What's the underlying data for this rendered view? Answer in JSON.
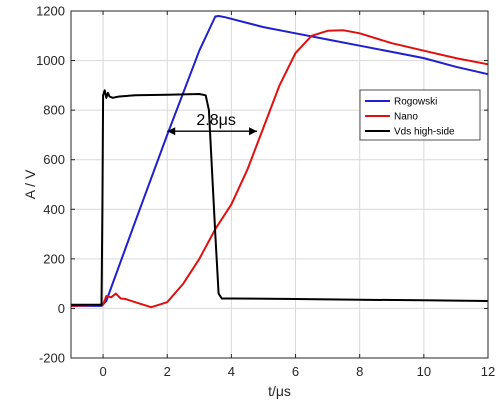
{
  "chart_data": {
    "type": "line",
    "xlabel": "t/μs",
    "ylabel": "A / V",
    "xlim": [
      -1,
      12
    ],
    "ylim": [
      -200,
      1200
    ],
    "xticks": [
      0,
      2,
      4,
      6,
      8,
      10,
      12
    ],
    "yticks": [
      -200,
      0,
      200,
      400,
      600,
      800,
      1000,
      1200
    ],
    "grid": true,
    "legend_position": "right",
    "series": [
      {
        "name": "Rogowski",
        "color": "#1f1fd0",
        "x": [
          -1,
          -0.05,
          0.1,
          1.0,
          2.0,
          3.0,
          3.5,
          3.6,
          3.8,
          5,
          6,
          7,
          8,
          9,
          10,
          11,
          12
        ],
        "y": [
          10,
          10,
          30,
          350,
          700,
          1040,
          1178,
          1180,
          1175,
          1135,
          1110,
          1085,
          1060,
          1035,
          1010,
          975,
          945
        ]
      },
      {
        "name": "Nano",
        "color": "#e01010",
        "x": [
          -1,
          0,
          0.1,
          0.25,
          0.4,
          0.55,
          0.7,
          1.0,
          1.5,
          2.0,
          2.5,
          3.0,
          3.5,
          4.0,
          4.5,
          5.0,
          5.5,
          6.0,
          6.5,
          7.0,
          7.5,
          8.0,
          9.0,
          10.0,
          11.0,
          12.0
        ],
        "y": [
          10,
          15,
          50,
          45,
          60,
          40,
          38,
          25,
          5,
          25,
          100,
          200,
          320,
          420,
          560,
          730,
          900,
          1030,
          1100,
          1120,
          1122,
          1110,
          1070,
          1040,
          1010,
          985
        ]
      },
      {
        "name": "Vds high-side",
        "color": "#000000",
        "x": [
          -1,
          -0.05,
          -0.02,
          0.0,
          0.05,
          0.1,
          0.15,
          0.2,
          0.3,
          0.5,
          1.0,
          2.0,
          3.0,
          3.2,
          3.3,
          3.5,
          3.6,
          3.7,
          4.0,
          6.0,
          8.0,
          10.0,
          12.0
        ],
        "y": [
          15,
          15,
          400,
          860,
          880,
          850,
          870,
          855,
          850,
          855,
          860,
          862,
          865,
          860,
          800,
          300,
          60,
          40,
          40,
          38,
          35,
          33,
          30
        ]
      }
    ],
    "annotations": [
      {
        "text": "2.8μs",
        "type": "double-arrow",
        "x_start": 2.0,
        "x_end": 4.8,
        "y": 715
      }
    ]
  }
}
